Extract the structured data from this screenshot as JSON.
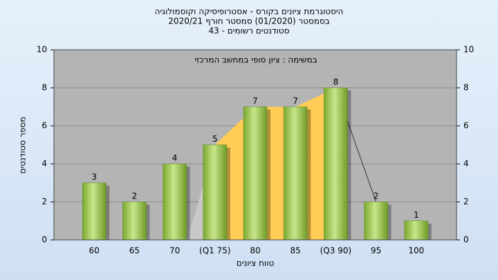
{
  "chart_data": {
    "type": "bar",
    "title": "היסטוגרמת ציונים בקורס - אסטרופיסיקה וקוסמולוגיה",
    "subtitle": "בסמסטר  (01/2020)  סמסטר חורף  2020/21",
    "subtitle2": "סטודנטים רשומים - 43",
    "annotation": "במשימה : ציון סופי במחשב המרכזי",
    "x_label": "טווח ציונים",
    "y_label": "מספר סטודנטים",
    "categories": [
      "60",
      "65",
      "70",
      "(Q1 75)",
      "80",
      "85",
      "(Q3 90)",
      "95",
      "100"
    ],
    "values": [
      3,
      2,
      4,
      5,
      7,
      7,
      8,
      2,
      1
    ],
    "color": "#9ccc4a",
    "ylim": [
      0,
      10
    ],
    "yticks": [
      0,
      2,
      4,
      6,
      8,
      10
    ],
    "y2lim": [
      0,
      10
    ],
    "y2ticks": [
      0,
      2,
      4,
      6,
      8,
      10
    ],
    "grid": true
  }
}
